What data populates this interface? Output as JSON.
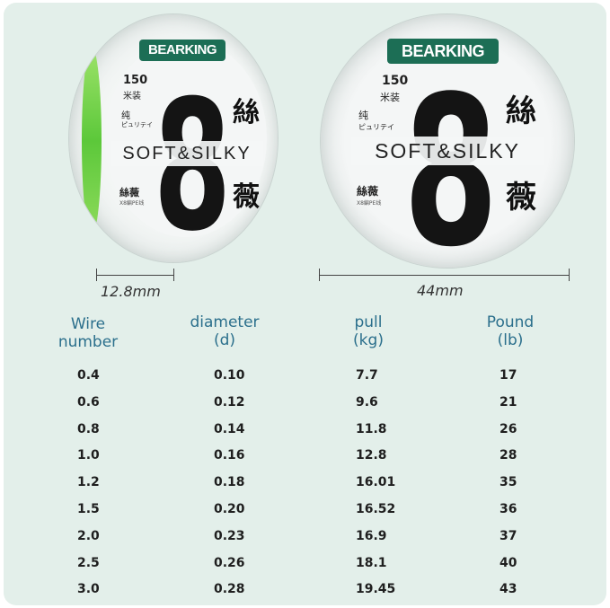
{
  "spool": {
    "brand": "BEARKING",
    "length": "150",
    "length_unit": "米装",
    "pure": "纯",
    "purity_jp": "ピュリテイ",
    "big_digit": "8",
    "tagline": "SOFT&SILKY",
    "kanji_top": "絲",
    "kanji_bottom": "薇",
    "small_kanji": "絲薇",
    "small_sub": "X8編PE线"
  },
  "dimensions": {
    "width_label": "12.8mm",
    "diameter_label": "44mm"
  },
  "table": {
    "headers": [
      {
        "line1": "Wire",
        "line2": "number"
      },
      {
        "line1": "diameter",
        "line2": "(d)"
      },
      {
        "line1": "pull",
        "line2": "(kg)"
      },
      {
        "line1": "Pound",
        "line2": "(lb)"
      }
    ],
    "rows": [
      [
        "0.4",
        "0.10",
        "7.7",
        "17"
      ],
      [
        "0.6",
        "0.12",
        "9.6",
        "21"
      ],
      [
        "0.8",
        "0.14",
        "11.8",
        "26"
      ],
      [
        "1.0",
        "0.16",
        "12.8",
        "28"
      ],
      [
        "1.2",
        "0.18",
        "16.01",
        "35"
      ],
      [
        "1.5",
        "0.20",
        "16.52",
        "36"
      ],
      [
        "2.0",
        "0.23",
        "16.9",
        "37"
      ],
      [
        "2.5",
        "0.26",
        "18.1",
        "40"
      ],
      [
        "3.0",
        "0.28",
        "19.45",
        "43"
      ]
    ]
  },
  "colors": {
    "background": "#e3efea",
    "brand": "#1c6e55",
    "header_text": "#2b6f8c",
    "line_green": "#6fd045"
  }
}
